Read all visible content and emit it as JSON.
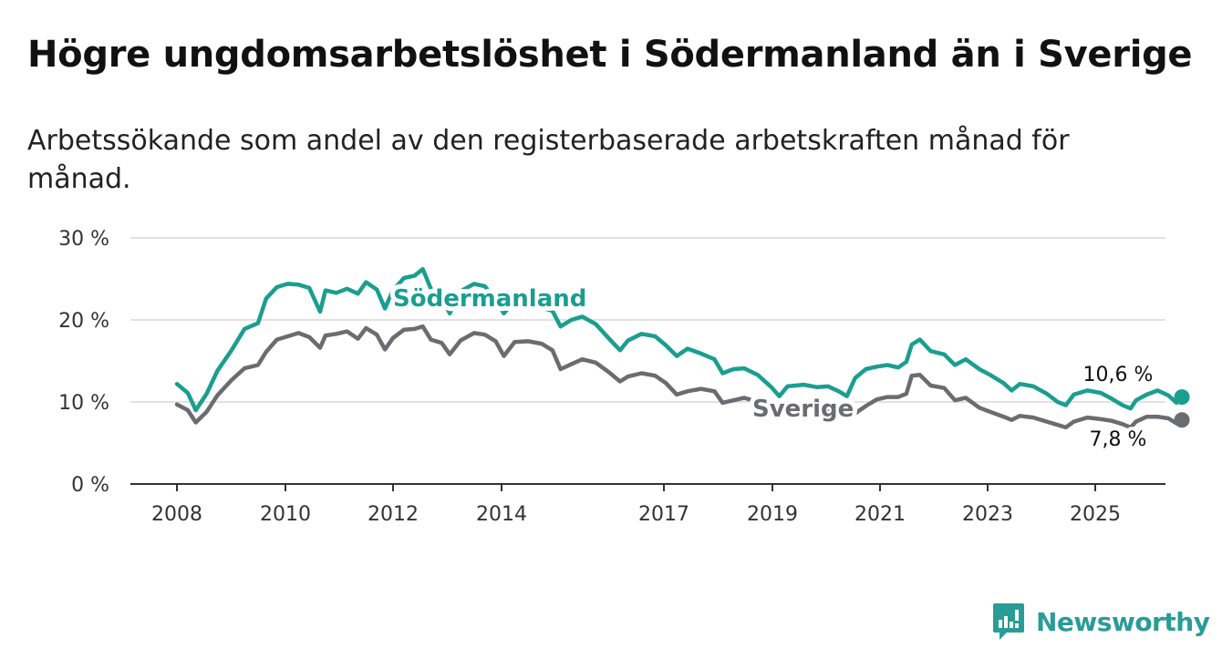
{
  "header": {
    "title": "Högre ungdomsarbetslöshet i Södermanland än i Sverige",
    "subtitle": "Arbetssökande som andel av den registerbaserade arbetskraften månad för månad."
  },
  "brand": {
    "name": "Newsworthy",
    "icon": "newsworthy-logo-icon",
    "color": "#2a9c98"
  },
  "chart_data": {
    "type": "line",
    "title": "Högre ungdomsarbetslöshet i Södermanland än i Sverige",
    "subtitle": "Arbetssökande som andel av den registerbaserade arbetskraften månad för månad.",
    "xlabel": "",
    "ylabel": "",
    "xlim": [
      2007.7,
      2026.2
    ],
    "ylim": [
      0,
      30
    ],
    "x_ticks": [
      2008,
      2010,
      2012,
      2014,
      2017,
      2019,
      2021,
      2023,
      2025
    ],
    "x_tick_labels": [
      "2008",
      "2010",
      "2012",
      "2014",
      "2017",
      "2019",
      "2021",
      "2023",
      "2025"
    ],
    "y_ticks": [
      0,
      10,
      20,
      30
    ],
    "y_tick_labels": [
      "0 %",
      "10 %",
      "20 %",
      "30 %"
    ],
    "grid": true,
    "series": [
      {
        "name": "Södermanland",
        "color": "#1a9e8f",
        "end_label": "10,6 %",
        "points": [
          [
            2008.0,
            12.2
          ],
          [
            2008.2,
            11.1
          ],
          [
            2008.35,
            9.0
          ],
          [
            2008.55,
            11.0
          ],
          [
            2008.75,
            13.8
          ],
          [
            2009.0,
            16.2
          ],
          [
            2009.25,
            18.9
          ],
          [
            2009.5,
            19.6
          ],
          [
            2009.65,
            22.6
          ],
          [
            2009.85,
            24.0
          ],
          [
            2010.05,
            24.4
          ],
          [
            2010.25,
            24.3
          ],
          [
            2010.45,
            23.9
          ],
          [
            2010.65,
            21.0
          ],
          [
            2010.75,
            23.6
          ],
          [
            2010.95,
            23.3
          ],
          [
            2011.15,
            23.8
          ],
          [
            2011.35,
            23.2
          ],
          [
            2011.5,
            24.6
          ],
          [
            2011.7,
            23.7
          ],
          [
            2011.85,
            21.4
          ],
          [
            2012.0,
            23.6
          ],
          [
            2012.2,
            25.1
          ],
          [
            2012.4,
            25.4
          ],
          [
            2012.55,
            26.2
          ],
          [
            2012.7,
            23.8
          ],
          [
            2012.9,
            22.7
          ],
          [
            2013.05,
            20.8
          ],
          [
            2013.25,
            23.5
          ],
          [
            2013.5,
            24.4
          ],
          [
            2013.7,
            24.1
          ],
          [
            2013.9,
            22.4
          ],
          [
            2014.05,
            20.8
          ],
          [
            2014.25,
            22.3
          ],
          [
            2014.5,
            21.8
          ],
          [
            2014.75,
            21.5
          ],
          [
            2014.95,
            21.1
          ],
          [
            2015.1,
            19.2
          ],
          [
            2015.3,
            20.0
          ],
          [
            2015.5,
            20.4
          ],
          [
            2015.75,
            19.5
          ],
          [
            2016.0,
            17.7
          ],
          [
            2016.2,
            16.3
          ],
          [
            2016.35,
            17.5
          ],
          [
            2016.6,
            18.3
          ],
          [
            2016.85,
            18.0
          ],
          [
            2017.05,
            16.9
          ],
          [
            2017.25,
            15.6
          ],
          [
            2017.45,
            16.5
          ],
          [
            2017.7,
            15.9
          ],
          [
            2017.95,
            15.2
          ],
          [
            2018.1,
            13.5
          ],
          [
            2018.3,
            14.0
          ],
          [
            2018.5,
            14.1
          ],
          [
            2018.75,
            13.3
          ],
          [
            2019.0,
            11.8
          ],
          [
            2019.15,
            10.7
          ],
          [
            2019.3,
            11.9
          ],
          [
            2019.6,
            12.1
          ],
          [
            2019.85,
            11.8
          ],
          [
            2020.05,
            11.9
          ],
          [
            2020.25,
            11.3
          ],
          [
            2020.4,
            10.7
          ],
          [
            2020.55,
            12.9
          ],
          [
            2020.75,
            14.0
          ],
          [
            2020.95,
            14.3
          ],
          [
            2021.15,
            14.5
          ],
          [
            2021.35,
            14.2
          ],
          [
            2021.5,
            14.9
          ],
          [
            2021.6,
            17.0
          ],
          [
            2021.75,
            17.6
          ],
          [
            2021.95,
            16.2
          ],
          [
            2022.2,
            15.8
          ],
          [
            2022.4,
            14.5
          ],
          [
            2022.6,
            15.2
          ],
          [
            2022.85,
            14.0
          ],
          [
            2023.05,
            13.3
          ],
          [
            2023.3,
            12.3
          ],
          [
            2023.45,
            11.4
          ],
          [
            2023.6,
            12.2
          ],
          [
            2023.85,
            11.9
          ],
          [
            2024.1,
            11.0
          ],
          [
            2024.3,
            10.0
          ],
          [
            2024.45,
            9.6
          ],
          [
            2024.6,
            10.9
          ],
          [
            2024.85,
            11.4
          ],
          [
            2025.1,
            11.1
          ],
          [
            2025.3,
            10.4
          ],
          [
            2025.5,
            9.6
          ],
          [
            2025.65,
            9.2
          ],
          [
            2025.75,
            10.2
          ],
          [
            2025.95,
            10.9
          ],
          [
            2026.15,
            11.4
          ],
          [
            2026.35,
            10.8
          ],
          [
            2026.5,
            9.9
          ],
          [
            2026.6,
            10.6
          ]
        ]
      },
      {
        "name": "Sverige",
        "color": "#6b6b72",
        "end_label": "7,8 %",
        "points": [
          [
            2008.0,
            9.7
          ],
          [
            2008.2,
            9.0
          ],
          [
            2008.35,
            7.5
          ],
          [
            2008.55,
            8.8
          ],
          [
            2008.75,
            10.8
          ],
          [
            2009.0,
            12.6
          ],
          [
            2009.25,
            14.1
          ],
          [
            2009.5,
            14.5
          ],
          [
            2009.65,
            16.1
          ],
          [
            2009.85,
            17.6
          ],
          [
            2010.05,
            18.0
          ],
          [
            2010.25,
            18.4
          ],
          [
            2010.45,
            17.9
          ],
          [
            2010.65,
            16.6
          ],
          [
            2010.75,
            18.1
          ],
          [
            2010.95,
            18.3
          ],
          [
            2011.15,
            18.6
          ],
          [
            2011.35,
            17.7
          ],
          [
            2011.5,
            19.0
          ],
          [
            2011.7,
            18.2
          ],
          [
            2011.85,
            16.4
          ],
          [
            2012.0,
            17.8
          ],
          [
            2012.2,
            18.8
          ],
          [
            2012.4,
            18.9
          ],
          [
            2012.55,
            19.2
          ],
          [
            2012.7,
            17.6
          ],
          [
            2012.9,
            17.2
          ],
          [
            2013.05,
            15.8
          ],
          [
            2013.25,
            17.5
          ],
          [
            2013.5,
            18.4
          ],
          [
            2013.7,
            18.2
          ],
          [
            2013.9,
            17.4
          ],
          [
            2014.05,
            15.6
          ],
          [
            2014.25,
            17.3
          ],
          [
            2014.5,
            17.4
          ],
          [
            2014.75,
            17.1
          ],
          [
            2014.95,
            16.3
          ],
          [
            2015.1,
            14.0
          ],
          [
            2015.3,
            14.6
          ],
          [
            2015.5,
            15.2
          ],
          [
            2015.75,
            14.8
          ],
          [
            2016.0,
            13.6
          ],
          [
            2016.2,
            12.5
          ],
          [
            2016.35,
            13.1
          ],
          [
            2016.6,
            13.5
          ],
          [
            2016.85,
            13.2
          ],
          [
            2017.05,
            12.3
          ],
          [
            2017.25,
            10.9
          ],
          [
            2017.45,
            11.3
          ],
          [
            2017.7,
            11.6
          ],
          [
            2017.95,
            11.3
          ],
          [
            2018.1,
            9.9
          ],
          [
            2018.3,
            10.2
          ],
          [
            2018.5,
            10.5
          ],
          [
            2018.75,
            10.0
          ],
          [
            2019.0,
            8.6
          ],
          [
            2019.15,
            8.1
          ],
          [
            2019.3,
            8.6
          ],
          [
            2019.6,
            8.9
          ],
          [
            2019.85,
            8.7
          ],
          [
            2020.05,
            8.8
          ],
          [
            2020.25,
            8.5
          ],
          [
            2020.4,
            8.0
          ],
          [
            2020.55,
            8.6
          ],
          [
            2020.75,
            9.5
          ],
          [
            2020.95,
            10.3
          ],
          [
            2021.15,
            10.6
          ],
          [
            2021.35,
            10.6
          ],
          [
            2021.5,
            11.0
          ],
          [
            2021.6,
            13.2
          ],
          [
            2021.75,
            13.3
          ],
          [
            2021.95,
            12.0
          ],
          [
            2022.2,
            11.7
          ],
          [
            2022.4,
            10.2
          ],
          [
            2022.6,
            10.5
          ],
          [
            2022.85,
            9.3
          ],
          [
            2023.05,
            8.8
          ],
          [
            2023.3,
            8.2
          ],
          [
            2023.45,
            7.8
          ],
          [
            2023.6,
            8.3
          ],
          [
            2023.85,
            8.1
          ],
          [
            2024.1,
            7.6
          ],
          [
            2024.3,
            7.2
          ],
          [
            2024.45,
            6.9
          ],
          [
            2024.6,
            7.6
          ],
          [
            2024.85,
            8.1
          ],
          [
            2025.1,
            7.9
          ],
          [
            2025.3,
            7.7
          ],
          [
            2025.5,
            7.3
          ],
          [
            2025.65,
            6.9
          ],
          [
            2025.75,
            7.6
          ],
          [
            2025.95,
            8.2
          ],
          [
            2026.15,
            8.2
          ],
          [
            2026.35,
            8.0
          ],
          [
            2026.5,
            7.4
          ],
          [
            2026.6,
            7.8
          ]
        ]
      }
    ]
  }
}
